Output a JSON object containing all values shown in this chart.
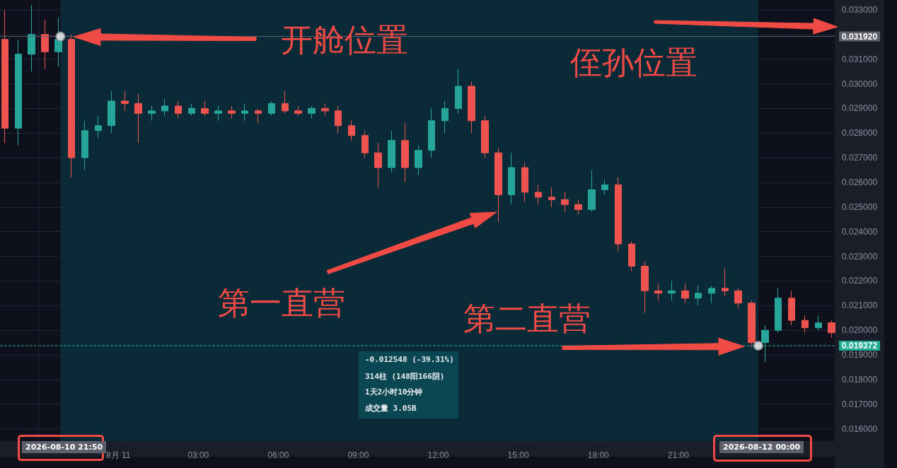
{
  "chart_data": {
    "type": "candlestick",
    "annotations": [
      "开舱位置",
      "侄孙位置",
      "第一直营",
      "第二直营",
      "-0.012548 (-39.31%)",
      "314柱 (148阳166阴)",
      "1天2小时10分钟",
      "成交量 3.05B",
      "2026-08-10 21:50",
      "2026-08-12 00:00"
    ],
    "xlim": [
      "2026-08-10T19:34",
      "2026-08-12T02:52"
    ],
    "xticks": [
      {
        "value": "2026-08-10T21:00",
        "label": null
      },
      {
        "value": "2026-08-11T00:00",
        "label": "8月 11"
      },
      {
        "value": "2026-08-11T03:00",
        "label": "03:00"
      },
      {
        "value": "2026-08-11T06:00",
        "label": "06:00"
      },
      {
        "value": "2026-08-11T09:00",
        "label": "09:00"
      },
      {
        "value": "2026-08-11T12:00",
        "label": "12:00"
      },
      {
        "value": "2026-08-11T15:00",
        "label": "15:00"
      },
      {
        "value": "2026-08-11T18:00",
        "label": "18:00"
      },
      {
        "value": "2026-08-11T21:00",
        "label": "21:00"
      }
    ],
    "ylim": [
      0.0155,
      0.0334
    ],
    "yticks": [
      {
        "value": 0.016,
        "label": "0.016000"
      },
      {
        "value": 0.017,
        "label": "0.017000"
      },
      {
        "value": 0.018,
        "label": "0.018000"
      },
      {
        "value": 0.019,
        "label": "0.019000"
      },
      {
        "value": 0.02,
        "label": "0.020000"
      },
      {
        "value": 0.021,
        "label": "0.021000"
      },
      {
        "value": 0.022,
        "label": "0.022000"
      },
      {
        "value": 0.023,
        "label": "0.023000"
      },
      {
        "value": 0.024,
        "label": "0.024000"
      },
      {
        "value": 0.025,
        "label": "0.025000"
      },
      {
        "value": 0.026,
        "label": "0.026000"
      },
      {
        "value": 0.027,
        "label": "0.027000"
      },
      {
        "value": 0.028,
        "label": "0.028000"
      },
      {
        "value": 0.029,
        "label": "0.029000"
      },
      {
        "value": 0.03,
        "label": "0.030000"
      },
      {
        "value": 0.031,
        "label": "0.031000"
      },
      {
        "value": 0.032,
        "label": null
      },
      {
        "value": 0.033,
        "label": "0.033000"
      }
    ],
    "grid": true,
    "ref_lines": [
      {
        "axis": "y",
        "value": 0.03192,
        "label": "0.031920",
        "color": "#5d606b",
        "line_style": "solid"
      },
      {
        "axis": "y",
        "value": 0.019372,
        "label": "0.019372",
        "color": "#22ab94",
        "line_style": "dashed"
      }
    ],
    "bands": [
      {
        "axis": "x",
        "from": "2026-08-10T21:50",
        "to": "2026-08-12T00:00",
        "color": "#0b2a38"
      }
    ],
    "series": [
      {
        "type": "candlestick",
        "x": [
          "2026-08-10T19:45",
          "2026-08-10T20:15",
          "2026-08-10T20:45",
          "2026-08-10T21:15",
          "2026-08-10T21:45",
          "2026-08-10T22:15",
          "2026-08-10T22:45",
          "2026-08-10T23:15",
          "2026-08-10T23:45",
          "2026-08-11T00:15",
          "2026-08-11T00:45",
          "2026-08-11T01:15",
          "2026-08-11T01:45",
          "2026-08-11T02:15",
          "2026-08-11T02:45",
          "2026-08-11T03:15",
          "2026-08-11T03:45",
          "2026-08-11T04:15",
          "2026-08-11T04:45",
          "2026-08-11T05:15",
          "2026-08-11T05:45",
          "2026-08-11T06:15",
          "2026-08-11T06:45",
          "2026-08-11T07:15",
          "2026-08-11T07:45",
          "2026-08-11T08:15",
          "2026-08-11T08:45",
          "2026-08-11T09:15",
          "2026-08-11T09:45",
          "2026-08-11T10:15",
          "2026-08-11T10:45",
          "2026-08-11T11:15",
          "2026-08-11T11:45",
          "2026-08-11T12:15",
          "2026-08-11T12:45",
          "2026-08-11T13:15",
          "2026-08-11T13:45",
          "2026-08-11T14:15",
          "2026-08-11T14:45",
          "2026-08-11T15:15",
          "2026-08-11T15:45",
          "2026-08-11T16:15",
          "2026-08-11T16:45",
          "2026-08-11T17:15",
          "2026-08-11T17:45",
          "2026-08-11T18:15",
          "2026-08-11T18:45",
          "2026-08-11T19:15",
          "2026-08-11T19:45",
          "2026-08-11T20:15",
          "2026-08-11T20:45",
          "2026-08-11T21:15",
          "2026-08-11T21:45",
          "2026-08-11T22:15",
          "2026-08-11T22:45",
          "2026-08-11T23:15",
          "2026-08-11T23:45",
          "2026-08-12T00:15",
          "2026-08-12T00:45",
          "2026-08-12T01:15",
          "2026-08-12T01:45",
          "2026-08-12T02:15",
          "2026-08-12T02:45"
        ],
        "ohlc": [
          [
            0.0318,
            0.033,
            0.0276,
            0.0282
          ],
          [
            0.0282,
            0.0318,
            0.0275,
            0.0312
          ],
          [
            0.0312,
            0.0332,
            0.0305,
            0.032
          ],
          [
            0.032,
            0.0326,
            0.0306,
            0.0313
          ],
          [
            0.0313,
            0.0327,
            0.0307,
            0.0318
          ],
          [
            0.0318,
            0.032,
            0.0262,
            0.027
          ],
          [
            0.027,
            0.0285,
            0.0265,
            0.0281
          ],
          [
            0.0281,
            0.0287,
            0.0278,
            0.0283
          ],
          [
            0.0283,
            0.0297,
            0.028,
            0.0293
          ],
          [
            0.0293,
            0.0297,
            0.0289,
            0.0292
          ],
          [
            0.0292,
            0.0296,
            0.0276,
            0.0288
          ],
          [
            0.0288,
            0.0291,
            0.0285,
            0.0289
          ],
          [
            0.0289,
            0.0294,
            0.0287,
            0.0291
          ],
          [
            0.0291,
            0.0293,
            0.0286,
            0.0288
          ],
          [
            0.0288,
            0.0292,
            0.0287,
            0.029
          ],
          [
            0.029,
            0.0293,
            0.0287,
            0.0288
          ],
          [
            0.0288,
            0.0291,
            0.0285,
            0.0289
          ],
          [
            0.0289,
            0.0291,
            0.0286,
            0.0288
          ],
          [
            0.0288,
            0.0292,
            0.0285,
            0.0289
          ],
          [
            0.0289,
            0.029,
            0.0284,
            0.0288
          ],
          [
            0.0288,
            0.0293,
            0.0287,
            0.0292
          ],
          [
            0.0292,
            0.0297,
            0.0288,
            0.0289
          ],
          [
            0.0289,
            0.0291,
            0.0287,
            0.0288
          ],
          [
            0.0288,
            0.0291,
            0.0286,
            0.029
          ],
          [
            0.029,
            0.0292,
            0.0287,
            0.0289
          ],
          [
            0.0289,
            0.0291,
            0.028,
            0.0283
          ],
          [
            0.0283,
            0.0285,
            0.0277,
            0.0279
          ],
          [
            0.0279,
            0.0281,
            0.027,
            0.0272
          ],
          [
            0.0272,
            0.0276,
            0.0258,
            0.0266
          ],
          [
            0.0266,
            0.0281,
            0.0264,
            0.0277
          ],
          [
            0.0277,
            0.0284,
            0.026,
            0.0266
          ],
          [
            0.0266,
            0.0275,
            0.0263,
            0.0273
          ],
          [
            0.0273,
            0.029,
            0.027,
            0.0285
          ],
          [
            0.0285,
            0.0293,
            0.028,
            0.029
          ],
          [
            0.029,
            0.0306,
            0.0288,
            0.0299
          ],
          [
            0.0299,
            0.0301,
            0.028,
            0.0285
          ],
          [
            0.0285,
            0.0287,
            0.027,
            0.0272
          ],
          [
            0.0272,
            0.0274,
            0.0244,
            0.0255
          ],
          [
            0.0255,
            0.0272,
            0.0251,
            0.0266
          ],
          [
            0.0266,
            0.0268,
            0.0252,
            0.0256
          ],
          [
            0.0256,
            0.0259,
            0.0251,
            0.0254
          ],
          [
            0.0254,
            0.0258,
            0.025,
            0.0253
          ],
          [
            0.0253,
            0.0256,
            0.0248,
            0.0251
          ],
          [
            0.0251,
            0.0253,
            0.0247,
            0.0249
          ],
          [
            0.0249,
            0.0265,
            0.0248,
            0.0257
          ],
          [
            0.0257,
            0.0261,
            0.0255,
            0.0259
          ],
          [
            0.0259,
            0.0262,
            0.0232,
            0.0235
          ],
          [
            0.0235,
            0.0236,
            0.0224,
            0.0226
          ],
          [
            0.0226,
            0.0228,
            0.0207,
            0.0216
          ],
          [
            0.0216,
            0.0219,
            0.0212,
            0.0215
          ],
          [
            0.0215,
            0.022,
            0.0212,
            0.0216
          ],
          [
            0.0216,
            0.0219,
            0.0211,
            0.0213
          ],
          [
            0.0213,
            0.0218,
            0.021,
            0.0215
          ],
          [
            0.0215,
            0.0218,
            0.0211,
            0.0217
          ],
          [
            0.0217,
            0.0225,
            0.0214,
            0.0216
          ],
          [
            0.0216,
            0.0217,
            0.0209,
            0.0211
          ],
          [
            0.0211,
            0.0212,
            0.0193,
            0.0195
          ],
          [
            0.0195,
            0.0202,
            0.0187,
            0.02
          ],
          [
            0.02,
            0.0217,
            0.0199,
            0.0213
          ],
          [
            0.0213,
            0.0216,
            0.0202,
            0.0204
          ],
          [
            0.0204,
            0.0206,
            0.0199,
            0.0201
          ],
          [
            0.0201,
            0.0206,
            0.02,
            0.0203
          ],
          [
            0.0203,
            0.0204,
            0.0197,
            0.0199
          ]
        ]
      },
      {
        "type": "scatter",
        "x": [
          "2026-08-10T21:50",
          "2026-08-12T00:00"
        ],
        "values": [
          0.03192,
          0.019372
        ],
        "color": "#9598a1",
        "marker": "circle"
      }
    ]
  }
}
